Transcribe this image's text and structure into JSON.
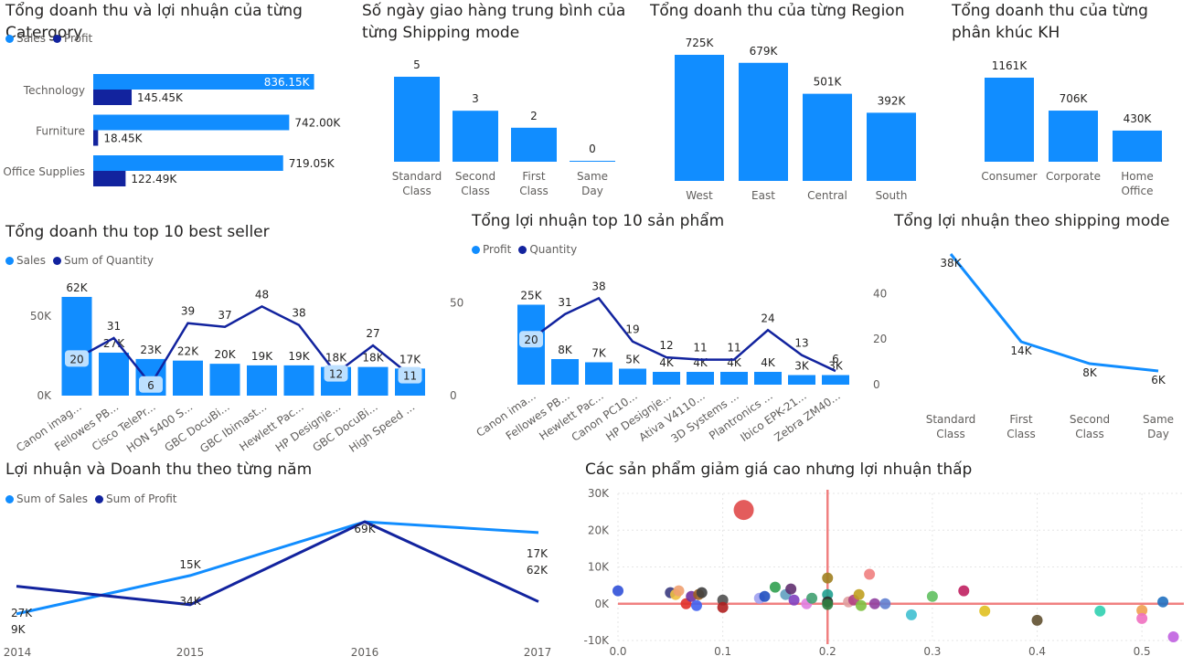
{
  "colors": {
    "sales": "#118DFF",
    "profit": "#12239E",
    "text": "#252423",
    "axis": "#605e5c",
    "refline": "#f08080"
  },
  "chart_data": [
    {
      "id": "cat",
      "type": "bar",
      "orientation": "horizontal",
      "title": "Tổng doanh thu và lợi nhuận của từng Catergory",
      "categories": [
        "Technology",
        "Furniture",
        "Office Supplies"
      ],
      "series": [
        {
          "name": "Sales",
          "values": [
            836150,
            742000,
            719050
          ],
          "labels": [
            "836.15K",
            "742.00K",
            "719.05K"
          ]
        },
        {
          "name": "Profit",
          "values": [
            145450,
            18450,
            122490
          ],
          "labels": [
            "145.45K",
            "18.45K",
            "122.49K"
          ]
        }
      ]
    },
    {
      "id": "ship",
      "type": "bar",
      "title": "Số ngày giao hàng trung bình của từng Shipping mode",
      "categories": [
        "Standard Class",
        "Second Class",
        "First Class",
        "Same Day"
      ],
      "values": [
        5,
        3,
        2,
        0
      ],
      "labels": [
        "5",
        "3",
        "2",
        "0"
      ]
    },
    {
      "id": "region",
      "type": "bar",
      "title": "Tổng doanh thu của từng Region",
      "categories": [
        "West",
        "East",
        "Central",
        "South"
      ],
      "values": [
        725000,
        679000,
        501000,
        392000
      ],
      "labels": [
        "725K",
        "679K",
        "501K",
        "392K"
      ]
    },
    {
      "id": "segment",
      "type": "bar",
      "title": "Tổng doanh thu của từng phân khúc KH",
      "categories": [
        "Consumer",
        "Corporate",
        "Home Office"
      ],
      "values": [
        1161000,
        706000,
        430000
      ],
      "labels": [
        "1161K",
        "706K",
        "430K"
      ]
    },
    {
      "id": "best",
      "type": "bar",
      "title": "Tổng doanh thu top 10 best seller",
      "categories": [
        "Canon imag...",
        "Fellowes PB...",
        "Cisco TelePr...",
        "HON 5400 S...",
        "GBC DocuBi...",
        "GBC Ibimast...",
        "Hewlett Pac...",
        "HP Designje...",
        "GBC DocuBi...",
        "High Speed ..."
      ],
      "series": [
        {
          "name": "Sales",
          "values": [
            62000,
            27000,
            23000,
            22000,
            20000,
            19000,
            19000,
            18000,
            18000,
            17000
          ],
          "labels": [
            "62K",
            "27K",
            "23K",
            "22K",
            "20K",
            "19K",
            "19K",
            "18K",
            "18K",
            "17K"
          ]
        },
        {
          "name": "Sum of Quantity",
          "values": [
            20,
            31,
            6,
            39,
            37,
            48,
            38,
            12,
            27,
            11
          ]
        }
      ],
      "y_ticks": [
        "0K",
        "50K"
      ],
      "y2_ticks": [
        "0",
        "50"
      ],
      "ylim": [
        0,
        70000
      ],
      "y2lim": [
        0,
        60
      ]
    },
    {
      "id": "topprofit",
      "type": "bar",
      "title": "Tổng lợi nhuận top 10 sản phẩm",
      "categories": [
        "Canon ima...",
        "Fellowes PB...",
        "Hewlett Pac...",
        "Canon PC10...",
        "HP Designje...",
        "Ativa V4110...",
        "3D Systems ...",
        "Plantronics ...",
        "Ibico EPK-21...",
        "Zebra ZM40..."
      ],
      "series": [
        {
          "name": "Profit",
          "values": [
            25000,
            8000,
            7000,
            5000,
            4000,
            4000,
            4000,
            4000,
            3000,
            3000
          ],
          "labels": [
            "25K",
            "8K",
            "7K",
            "5K",
            "4K",
            "4K",
            "4K",
            "4K",
            "3K",
            "3K"
          ]
        },
        {
          "name": "Quantity",
          "values": [
            20,
            31,
            38,
            19,
            12,
            11,
            11,
            24,
            13,
            6
          ]
        }
      ],
      "y2_ticks": [
        "0",
        "20",
        "40"
      ],
      "ylim": [
        0,
        32000
      ],
      "y2lim": [
        0,
        45
      ]
    },
    {
      "id": "shipprofit",
      "type": "line",
      "title": "Tổng lợi nhuận theo shipping mode",
      "categories": [
        "Standard Class",
        "First Class",
        "Second Class",
        "Same Day"
      ],
      "values": [
        38000,
        14000,
        8000,
        6000
      ],
      "labels": [
        "38K",
        "14K",
        "8K",
        "6K"
      ]
    },
    {
      "id": "year",
      "type": "line",
      "title": "Lợi nhuận và Doanh thu theo từng năm",
      "x": [
        "2014",
        "2015",
        "2016",
        "2017"
      ],
      "series": [
        {
          "name": "Sum of Sales",
          "values": [
            9000,
            34000,
            69000,
            62000
          ],
          "labels": [
            "9K",
            "34K",
            "69K",
            "62K"
          ]
        },
        {
          "name": "Sum of Profit",
          "values": [
            27000,
            15000,
            69000,
            17000
          ],
          "labels": [
            "27K",
            "15K",
            "69K",
            "17K"
          ]
        }
      ]
    },
    {
      "id": "scatter",
      "type": "scatter",
      "title": "Các sản phẩm giảm giá cao nhưng lợi nhuận thấp",
      "x_ticks": [
        "0.0",
        "0.1",
        "0.2",
        "0.3",
        "0.4",
        "0.5"
      ],
      "y_ticks": [
        "30K",
        "20K",
        "10K",
        "0K",
        "-10K"
      ],
      "xlim": [
        0,
        0.54
      ],
      "ylim": [
        -10000,
        30000
      ],
      "ref_x": 0.2,
      "ref_y": 0,
      "points": [
        {
          "x": 0.0,
          "y": 3500,
          "c": "#3050d8"
        },
        {
          "x": 0.05,
          "y": 3000,
          "c": "#3b3b80"
        },
        {
          "x": 0.055,
          "y": 2500,
          "c": "#f0c040"
        },
        {
          "x": 0.058,
          "y": 3500,
          "c": "#f0a070"
        },
        {
          "x": 0.065,
          "y": 0,
          "c": "#e0302a"
        },
        {
          "x": 0.07,
          "y": 2000,
          "c": "#7030a0"
        },
        {
          "x": 0.075,
          "y": -500,
          "c": "#4060f0"
        },
        {
          "x": 0.077,
          "y": 2500,
          "c": "#a06020"
        },
        {
          "x": 0.08,
          "y": 3000,
          "c": "#404040"
        },
        {
          "x": 0.12,
          "y": 25500,
          "c": "#e04a4a",
          "r": 11
        },
        {
          "x": 0.1,
          "y": 1000,
          "c": "#505050"
        },
        {
          "x": 0.1,
          "y": -1000,
          "c": "#b02020"
        },
        {
          "x": 0.135,
          "y": 1500,
          "c": "#a0a0f0"
        },
        {
          "x": 0.14,
          "y": 2000,
          "c": "#2050c0"
        },
        {
          "x": 0.15,
          "y": 4500,
          "c": "#30a050"
        },
        {
          "x": 0.16,
          "y": 2500,
          "c": "#60a0c0"
        },
        {
          "x": 0.165,
          "y": 4000,
          "c": "#603070"
        },
        {
          "x": 0.168,
          "y": 1000,
          "c": "#8040c0"
        },
        {
          "x": 0.18,
          "y": 0,
          "c": "#e080e0"
        },
        {
          "x": 0.185,
          "y": 1500,
          "c": "#40a070"
        },
        {
          "x": 0.2,
          "y": 7000,
          "c": "#a08020"
        },
        {
          "x": 0.2,
          "y": 2500,
          "c": "#20a090"
        },
        {
          "x": 0.2,
          "y": 500,
          "c": "#303030"
        },
        {
          "x": 0.2,
          "y": -200,
          "c": "#308040"
        },
        {
          "x": 0.22,
          "y": 500,
          "c": "#e0a0a0"
        },
        {
          "x": 0.225,
          "y": 1000,
          "c": "#b04080"
        },
        {
          "x": 0.23,
          "y": 2500,
          "c": "#c0a020"
        },
        {
          "x": 0.232,
          "y": -500,
          "c": "#80c040"
        },
        {
          "x": 0.24,
          "y": 8000,
          "c": "#f08080"
        },
        {
          "x": 0.245,
          "y": 0,
          "c": "#9040a0"
        },
        {
          "x": 0.255,
          "y": 0,
          "c": "#6080d0"
        },
        {
          "x": 0.28,
          "y": -3000,
          "c": "#40c0d0"
        },
        {
          "x": 0.3,
          "y": 2000,
          "c": "#60c060"
        },
        {
          "x": 0.33,
          "y": 3500,
          "c": "#c02060"
        },
        {
          "x": 0.35,
          "y": -2000,
          "c": "#e0c020"
        },
        {
          "x": 0.4,
          "y": -4500,
          "c": "#605030"
        },
        {
          "x": 0.46,
          "y": -2000,
          "c": "#30d0b0"
        },
        {
          "x": 0.5,
          "y": -1800,
          "c": "#f0a050"
        },
        {
          "x": 0.5,
          "y": -4000,
          "c": "#f070c0"
        },
        {
          "x": 0.52,
          "y": 500,
          "c": "#2070c0"
        },
        {
          "x": 0.53,
          "y": -9000,
          "c": "#c060e0"
        }
      ]
    }
  ]
}
